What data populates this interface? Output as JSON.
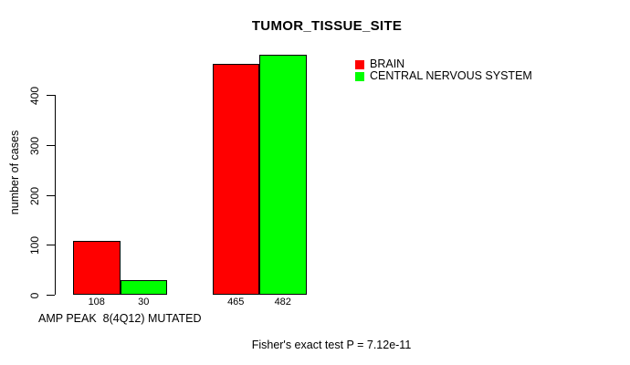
{
  "chart_data": {
    "type": "bar",
    "title": "TUMOR_TISSUE_SITE",
    "ylabel": "number of cases",
    "xlabel": "AMP PEAK  8(4Q12) MUTATED",
    "ylim": [
      0,
      400
    ],
    "yticks": [
      0,
      100,
      200,
      300,
      400
    ],
    "grid": false,
    "legend_position": "top-right",
    "series": [
      {
        "name": "BRAIN",
        "color": "#FF0000",
        "values": [
          108,
          465
        ]
      },
      {
        "name": "CENTRAL NERVOUS SYSTEM",
        "color": "#00FF00",
        "values": [
          30,
          482
        ]
      }
    ],
    "bar_value_labels": [
      [
        108,
        30
      ],
      [
        465,
        482
      ]
    ],
    "annotation": "Fisher's exact test P = 7.12e-11"
  }
}
